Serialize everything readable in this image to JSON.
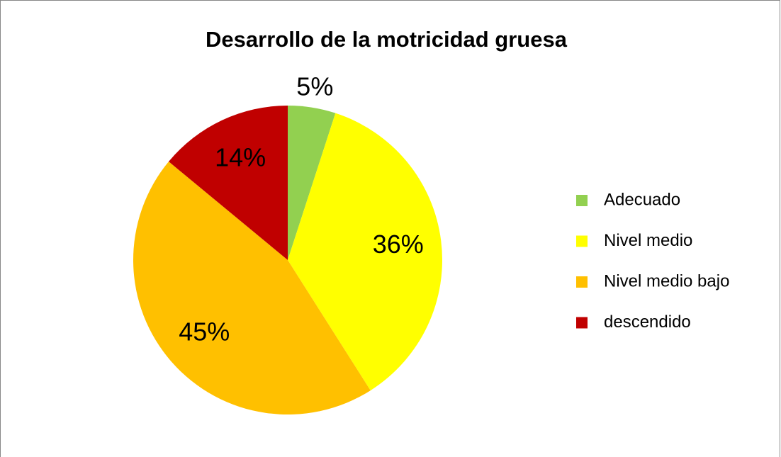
{
  "chart_data": {
    "type": "pie",
    "title": "Desarrollo de la motricidad gruesa",
    "categories": [
      "Adecuado",
      "Nivel medio",
      "Nivel medio bajo",
      "descendido"
    ],
    "values": [
      5,
      36,
      45,
      14
    ],
    "value_labels": [
      "5%",
      "36%",
      "45%",
      "14%"
    ],
    "colors": [
      "#92d050",
      "#ffff00",
      "#ffc000",
      "#c00000"
    ],
    "legend": "right"
  }
}
